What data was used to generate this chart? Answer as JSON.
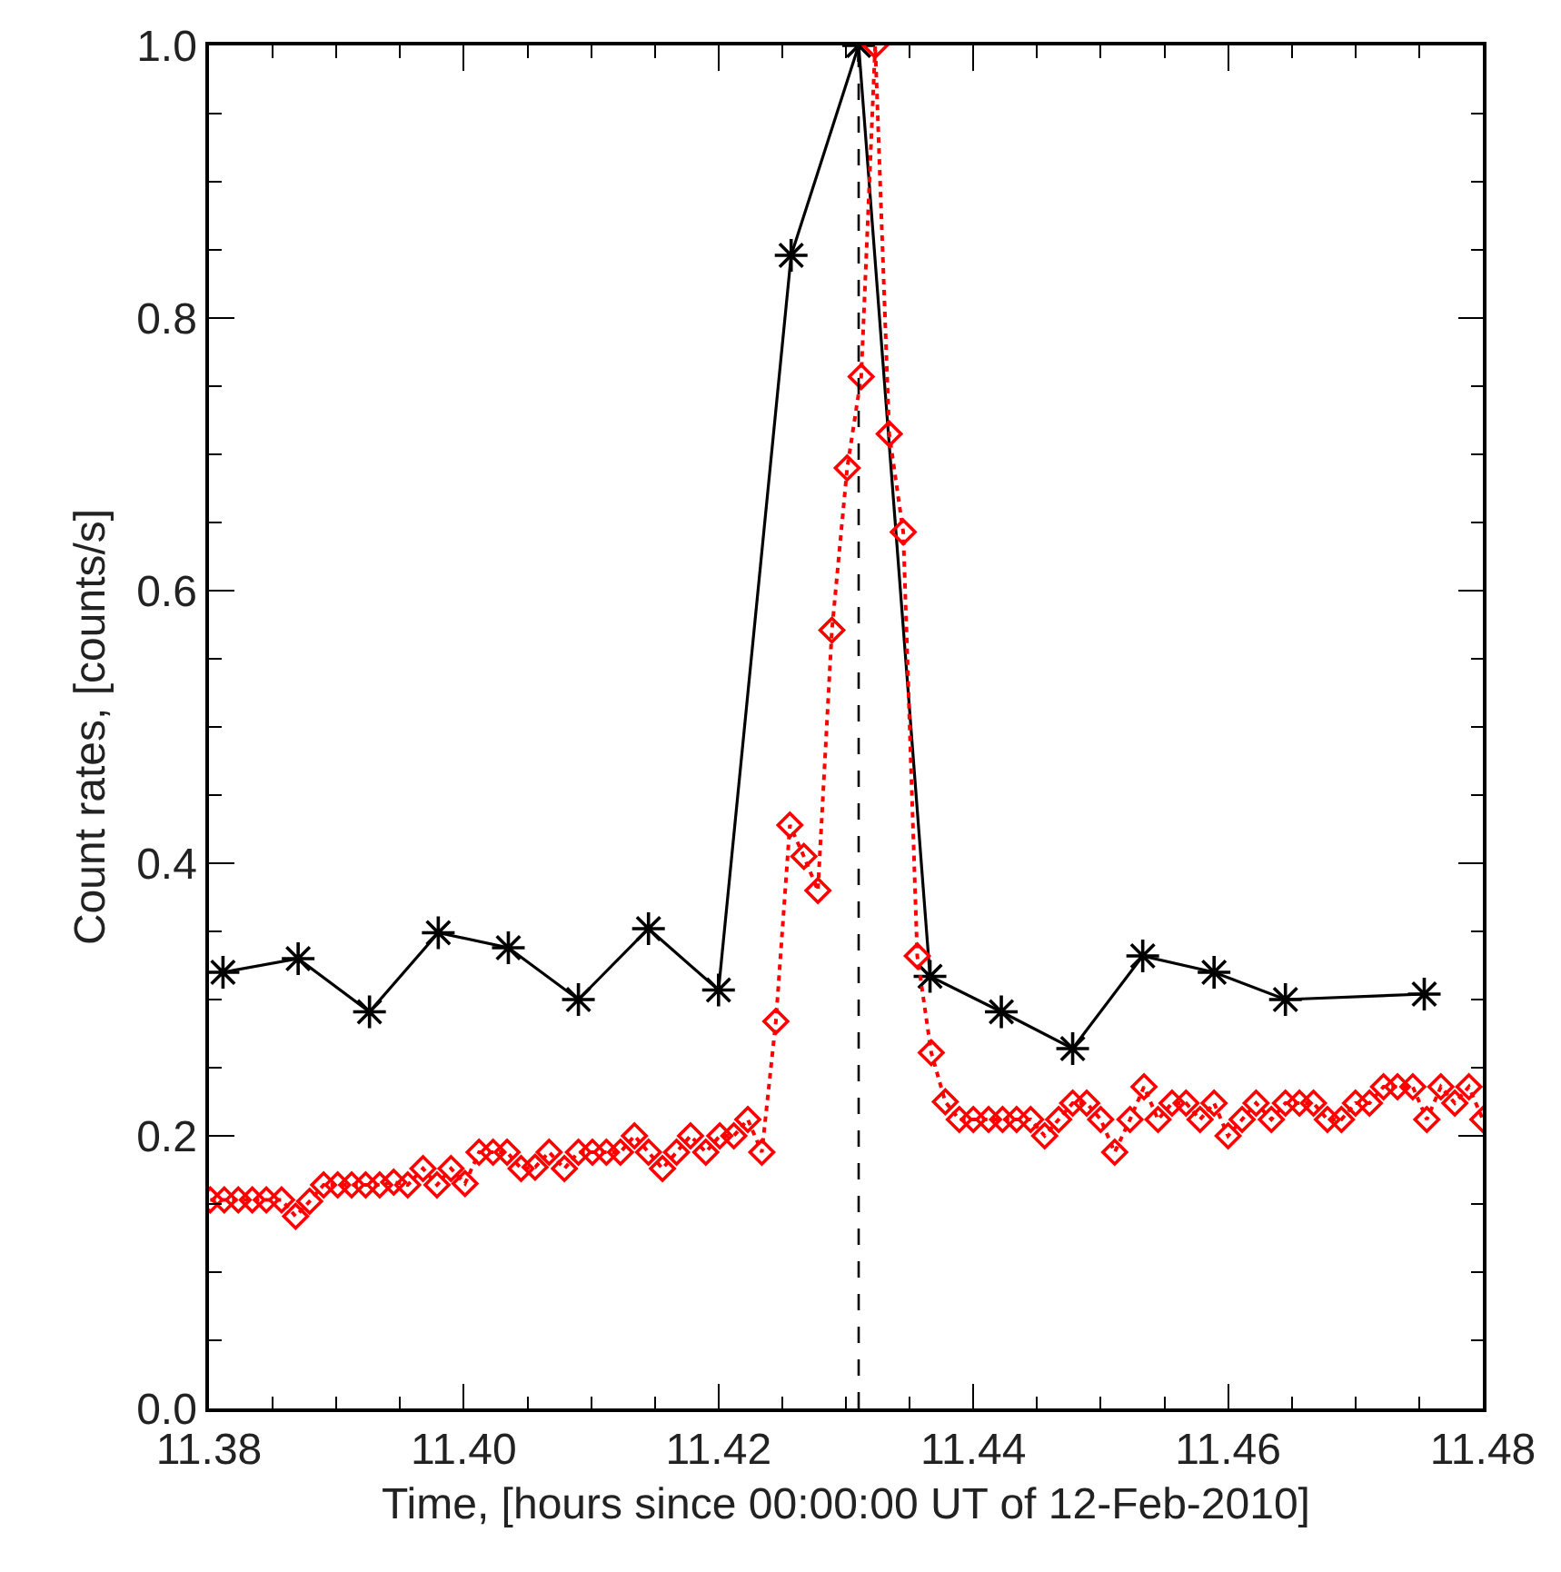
{
  "chart_data": {
    "type": "line",
    "xlabel": "Time, [hours since 00:00:00 UT of 12-Feb-2010]",
    "ylabel": "Count rates, [counts/s]",
    "xlim": [
      11.38,
      11.48
    ],
    "xticks": [
      {
        "value": 11.38,
        "label": "11.38"
      },
      {
        "value": 11.4,
        "label": "11.40"
      },
      {
        "value": 11.42,
        "label": "11.42"
      },
      {
        "value": 11.44,
        "label": "11.44"
      },
      {
        "value": 11.46,
        "label": "11.46"
      },
      {
        "value": 11.48,
        "label": "11.48"
      }
    ],
    "ylim": [
      0,
      1
    ],
    "yticks": [
      {
        "value": 0,
        "label": "0.0"
      },
      {
        "value": 0.2,
        "label": "0.2"
      },
      {
        "value": 0.4,
        "label": "0.4"
      },
      {
        "value": 0.6,
        "label": "0.6"
      },
      {
        "value": 0.8,
        "label": "0.8"
      },
      {
        "value": 1,
        "label": "1.0"
      }
    ],
    "grid": false,
    "ref_lines": [
      {
        "axis": "x",
        "value": 11.431,
        "color": "#000000",
        "line_style": "dashed"
      }
    ],
    "series": [
      {
        "color": "#000000",
        "marker": "cross",
        "line_style": "solid",
        "x": [
          11.3811,
          11.387,
          11.3926,
          11.398,
          11.4035,
          11.409,
          11.4145,
          11.42,
          11.4257,
          11.431,
          11.4366,
          11.4422,
          11.4478,
          11.4533,
          11.4589,
          11.4645,
          11.4754
        ],
        "values": [
          0.32,
          0.33,
          0.291,
          0.349,
          0.338,
          0.3,
          0.352,
          0.307,
          0.846,
          1.0,
          0.317,
          0.291,
          0.264,
          0.332,
          0.32,
          0.3,
          0.304
        ]
      },
      {
        "color": "#ff0000",
        "marker": "diamond",
        "line_style": "dotted",
        "x": [
          11.3801,
          11.3812,
          11.3823,
          11.3834,
          11.3845,
          11.3857,
          11.3868,
          11.3879,
          11.389,
          11.3901,
          11.3912,
          11.3923,
          11.3934,
          11.3945,
          11.3956,
          11.3968,
          11.3979,
          11.399,
          11.4001,
          11.4012,
          11.4023,
          11.4034,
          11.4045,
          11.4056,
          11.4067,
          11.4079,
          11.409,
          11.4101,
          11.4112,
          11.4123,
          11.4134,
          11.4145,
          11.4156,
          11.4167,
          11.4178,
          11.419,
          11.4201,
          11.4212,
          11.4223,
          11.4234,
          11.4245,
          11.4256,
          11.4267,
          11.4278,
          11.4289,
          11.4301,
          11.4312,
          11.4323,
          11.4334,
          11.4345,
          11.4356,
          11.4367,
          11.4378,
          11.4389,
          11.44,
          11.4412,
          11.4423,
          11.4434,
          11.4445,
          11.4456,
          11.4467,
          11.4478,
          11.4489,
          11.45,
          11.4511,
          11.4523,
          11.4534,
          11.4545,
          11.4556,
          11.4567,
          11.4578,
          11.4589,
          11.46,
          11.4611,
          11.4622,
          11.4634,
          11.4645,
          11.4656,
          11.4667,
          11.4678,
          11.4689,
          11.47,
          11.4711,
          11.4722,
          11.4733,
          11.4745,
          11.4756,
          11.4767,
          11.4778,
          11.4789,
          11.48
        ],
        "values": [
          0.153,
          0.153,
          0.153,
          0.153,
          0.153,
          0.153,
          0.141,
          0.152,
          0.164,
          0.164,
          0.164,
          0.164,
          0.164,
          0.166,
          0.164,
          0.176,
          0.164,
          0.176,
          0.165,
          0.188,
          0.188,
          0.188,
          0.176,
          0.177,
          0.188,
          0.176,
          0.188,
          0.188,
          0.188,
          0.188,
          0.2,
          0.188,
          0.176,
          0.188,
          0.2,
          0.188,
          0.2,
          0.2,
          0.212,
          0.188,
          0.284,
          0.428,
          0.405,
          0.38,
          0.571,
          0.69,
          0.757,
          1.0,
          0.715,
          0.643,
          0.332,
          0.261,
          0.225,
          0.212,
          0.212,
          0.212,
          0.212,
          0.212,
          0.212,
          0.2,
          0.212,
          0.224,
          0.224,
          0.212,
          0.188,
          0.212,
          0.236,
          0.212,
          0.224,
          0.224,
          0.212,
          0.224,
          0.2,
          0.212,
          0.224,
          0.212,
          0.224,
          0.224,
          0.224,
          0.212,
          0.212,
          0.224,
          0.224,
          0.236,
          0.236,
          0.236,
          0.212,
          0.236,
          0.224,
          0.236,
          0.212
        ]
      }
    ]
  }
}
